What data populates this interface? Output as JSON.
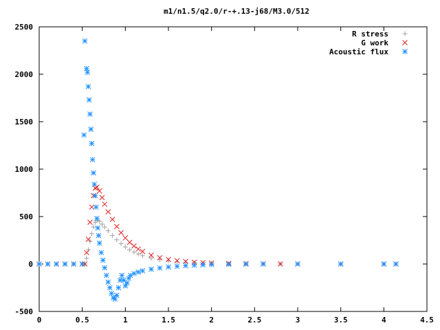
{
  "chart_data": {
    "type": "scatter",
    "title": "m1/n1.5/q2.0/r-+.13-j68/M3.0/512",
    "xlabel": "",
    "ylabel": "",
    "xlim": [
      0,
      4.5
    ],
    "ylim": [
      -500,
      2500
    ],
    "x_ticks": [
      "0",
      "0.5",
      "1",
      "1.5",
      "2",
      "2.5",
      "3",
      "3.5",
      "4",
      "4.5"
    ],
    "y_ticks": [
      "-500",
      "0",
      "500",
      "1000",
      "1500",
      "2000",
      "2500"
    ],
    "grid": false,
    "legend_position": "top-right",
    "series": [
      {
        "name": "R stress",
        "color": "#a0a0a0",
        "marker": "plus",
        "points": [
          [
            0.0,
            0
          ],
          [
            0.1,
            0
          ],
          [
            0.2,
            0
          ],
          [
            0.3,
            0
          ],
          [
            0.4,
            0
          ],
          [
            0.5,
            0
          ],
          [
            0.53,
            0
          ],
          [
            0.55,
            60
          ],
          [
            0.57,
            150
          ],
          [
            0.59,
            240
          ],
          [
            0.61,
            320
          ],
          [
            0.63,
            390
          ],
          [
            0.65,
            440
          ],
          [
            0.67,
            460
          ],
          [
            0.7,
            450
          ],
          [
            0.73,
            420
          ],
          [
            0.76,
            390
          ],
          [
            0.8,
            350
          ],
          [
            0.85,
            300
          ],
          [
            0.9,
            255
          ],
          [
            0.95,
            215
          ],
          [
            1.0,
            180
          ],
          [
            1.05,
            150
          ],
          [
            1.1,
            125
          ],
          [
            1.15,
            105
          ],
          [
            1.2,
            88
          ],
          [
            1.3,
            62
          ],
          [
            1.4,
            45
          ],
          [
            1.5,
            32
          ],
          [
            1.6,
            24
          ],
          [
            1.7,
            18
          ],
          [
            1.8,
            14
          ],
          [
            1.9,
            11
          ],
          [
            2.0,
            8
          ],
          [
            2.2,
            5
          ],
          [
            2.4,
            3
          ],
          [
            2.6,
            2
          ],
          [
            2.8,
            1
          ],
          [
            3.0,
            1
          ],
          [
            3.5,
            0
          ],
          [
            4.0,
            0
          ],
          [
            4.14,
            0
          ]
        ]
      },
      {
        "name": "G work",
        "color": "#e02020",
        "marker": "cross",
        "points": [
          [
            0.0,
            0
          ],
          [
            0.1,
            0
          ],
          [
            0.2,
            0
          ],
          [
            0.3,
            0
          ],
          [
            0.4,
            0
          ],
          [
            0.5,
            0
          ],
          [
            0.53,
            0
          ],
          [
            0.55,
            120
          ],
          [
            0.57,
            260
          ],
          [
            0.59,
            440
          ],
          [
            0.61,
            600
          ],
          [
            0.63,
            720
          ],
          [
            0.65,
            800
          ],
          [
            0.67,
            810
          ],
          [
            0.7,
            770
          ],
          [
            0.73,
            700
          ],
          [
            0.76,
            630
          ],
          [
            0.8,
            550
          ],
          [
            0.85,
            470
          ],
          [
            0.9,
            395
          ],
          [
            0.95,
            330
          ],
          [
            1.0,
            275
          ],
          [
            1.05,
            228
          ],
          [
            1.1,
            190
          ],
          [
            1.15,
            158
          ],
          [
            1.2,
            132
          ],
          [
            1.3,
            93
          ],
          [
            1.4,
            66
          ],
          [
            1.5,
            48
          ],
          [
            1.6,
            35
          ],
          [
            1.7,
            26
          ],
          [
            1.8,
            19
          ],
          [
            1.9,
            14
          ],
          [
            2.0,
            11
          ],
          [
            2.2,
            6
          ],
          [
            2.4,
            4
          ],
          [
            2.6,
            2
          ],
          [
            2.8,
            1
          ],
          [
            3.0,
            1
          ],
          [
            3.5,
            0
          ],
          [
            4.0,
            0
          ],
          [
            4.14,
            0
          ]
        ]
      },
      {
        "name": "Acoustic flux",
        "color": "#1e90ff",
        "marker": "star",
        "points": [
          [
            0.0,
            0
          ],
          [
            0.1,
            0
          ],
          [
            0.2,
            0
          ],
          [
            0.3,
            0
          ],
          [
            0.4,
            0
          ],
          [
            0.5,
            0
          ],
          [
            0.52,
            1360
          ],
          [
            0.53,
            2350
          ],
          [
            0.55,
            2060
          ],
          [
            0.56,
            2020
          ],
          [
            0.57,
            1870
          ],
          [
            0.58,
            1730
          ],
          [
            0.59,
            1580
          ],
          [
            0.6,
            1420
          ],
          [
            0.61,
            1270
          ],
          [
            0.62,
            1100
          ],
          [
            0.63,
            960
          ],
          [
            0.64,
            840
          ],
          [
            0.65,
            720
          ],
          [
            0.66,
            600
          ],
          [
            0.67,
            480
          ],
          [
            0.68,
            380
          ],
          [
            0.69,
            300
          ],
          [
            0.7,
            220
          ],
          [
            0.72,
            120
          ],
          [
            0.74,
            40
          ],
          [
            0.76,
            -40
          ],
          [
            0.78,
            -120
          ],
          [
            0.8,
            -190
          ],
          [
            0.82,
            -250
          ],
          [
            0.84,
            -310
          ],
          [
            0.86,
            -355
          ],
          [
            0.88,
            -370
          ],
          [
            0.9,
            -330
          ],
          [
            0.92,
            -250
          ],
          [
            0.94,
            -170
          ],
          [
            0.96,
            -120
          ],
          [
            0.98,
            -170
          ],
          [
            1.0,
            -230
          ],
          [
            1.02,
            -200
          ],
          [
            1.04,
            -150
          ],
          [
            1.06,
            -120
          ],
          [
            1.1,
            -100
          ],
          [
            1.15,
            -85
          ],
          [
            1.2,
            -72
          ],
          [
            1.3,
            -55
          ],
          [
            1.4,
            -42
          ],
          [
            1.5,
            -32
          ],
          [
            1.6,
            -24
          ],
          [
            1.7,
            -18
          ],
          [
            1.8,
            -13
          ],
          [
            1.9,
            -9
          ],
          [
            2.0,
            -6
          ],
          [
            2.2,
            -3
          ],
          [
            2.4,
            -1
          ],
          [
            2.6,
            0
          ],
          [
            3.0,
            0
          ],
          [
            3.5,
            0
          ],
          [
            4.0,
            0
          ],
          [
            4.14,
            0
          ]
        ]
      }
    ]
  }
}
